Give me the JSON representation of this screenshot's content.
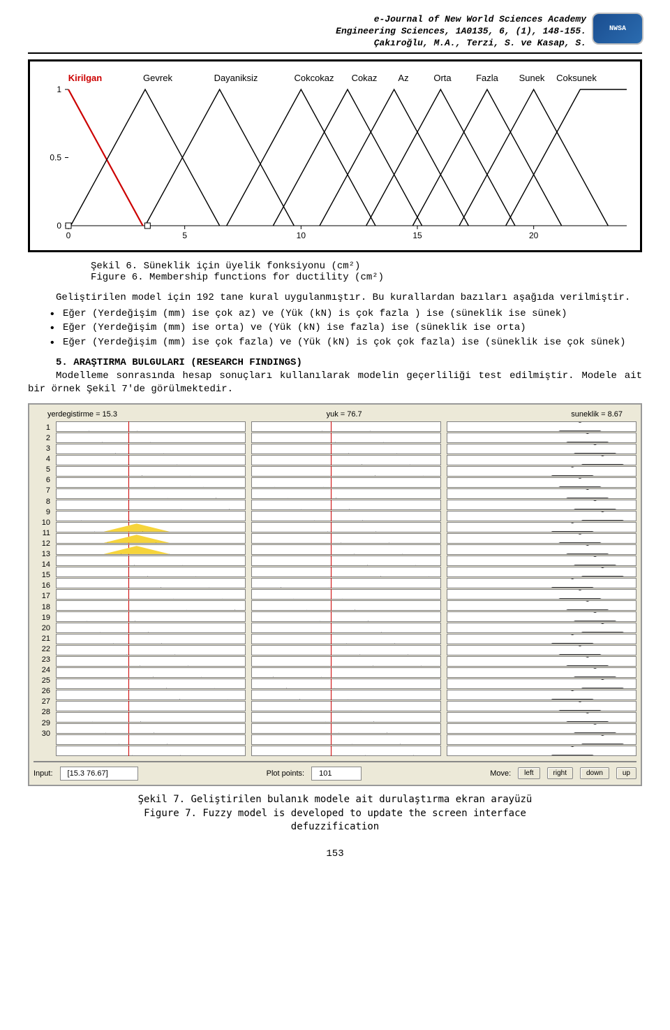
{
  "header": {
    "line1": "e-Journal of New World Sciences Academy",
    "line2": "Engineering Sciences, 1A0135, 6, (1), 148-155.",
    "line3": "Çakıroğlu, M.A., Terzi, S. ve Kasap, S.",
    "logo_text": "NWSA",
    "logo_bg": "#1a4d8f"
  },
  "mf_chart": {
    "labels": [
      "Kirilgan",
      "Gevrek",
      "Dayaniksiz",
      "Cokcokaz",
      "Cokaz",
      "Az",
      "Orta",
      "Fazla",
      "Sunek",
      "Coksunek"
    ],
    "selected_label": "Kirilgan",
    "selected_color": "#cc0000",
    "line_color": "#000000",
    "bg": "#ffffff",
    "xlim": [
      0,
      24
    ],
    "xticks": [
      0,
      5,
      10,
      15,
      20
    ],
    "ylim": [
      0,
      1
    ],
    "yticks": [
      0,
      0.5,
      1
    ],
    "tick_fontsize": 12,
    "label_fontsize": 13,
    "peaks": [
      0,
      3.3,
      6.5,
      10,
      12,
      14,
      16,
      18,
      20,
      22
    ],
    "half_width": 3.2,
    "handle_x": 3.4,
    "handle_size": 8
  },
  "caption1a": "Şekil 6. Süneklik için üyelik fonksiyonu (cm²)",
  "caption1b": "Figure 6. Membership functions for ductility (cm²)",
  "para1": "Geliştirilen model için 192 tane kural uygulanmıştır. Bu kurallardan bazıları aşağıda verilmiştir.",
  "rules": [
    "Eğer (Yerdeğişim (mm) ise çok az) ve (Yük (kN) is çok fazla ) ise (süneklik ise sünek)",
    "Eğer (Yerdeğişim (mm) ise orta) ve (Yük (kN) ise fazla) ise (süneklik ise orta)",
    "Eğer (Yerdeğişim (mm) ise çok fazla) ve (Yük (kN) is çok çok fazla) ise (süneklik ise çok sünek)"
  ],
  "section5_title": "5. ARAŞTIRMA BULGULARI (RESEARCH FINDINGS)",
  "para2": "Modelleme sonrasında hesap sonuçları kullanılarak modelin geçerliliği test edilmiştir. Modele ait bir örnek Şekil 7'de görülmektedir.",
  "rule_viewer": {
    "var1_label": "yerdegistirme = 15.3",
    "var2_label": "yuk = 76.7",
    "out_label": "suneklik = 8.67",
    "n_rules": 30,
    "redline_1_pct": 38,
    "redline_2_pct": 42,
    "yellow_rows": [
      10,
      11,
      12
    ],
    "output_tri_rows": "all",
    "controls": {
      "input_label": "Input:",
      "input_value": "[15.3 76.67]",
      "plot_label": "Plot points:",
      "plot_value": "101",
      "move_label": "Move:",
      "buttons": [
        "left",
        "right",
        "down",
        "up"
      ]
    },
    "panel_bg": "#ece9d8",
    "cell_bg": "#ffffff",
    "cell_border": "#808080",
    "redline_color": "#cc0000",
    "yellow_fill": "#f6d43a",
    "tri_stroke": "#333333"
  },
  "caption2a": "Şekil 7. Geliştirilen bulanık modele ait durulaştırma ekran arayüzü",
  "caption2b": "Figure 7. Fuzzy model is developed to update the screen interface",
  "caption2c": "defuzzification",
  "page_number": "153"
}
